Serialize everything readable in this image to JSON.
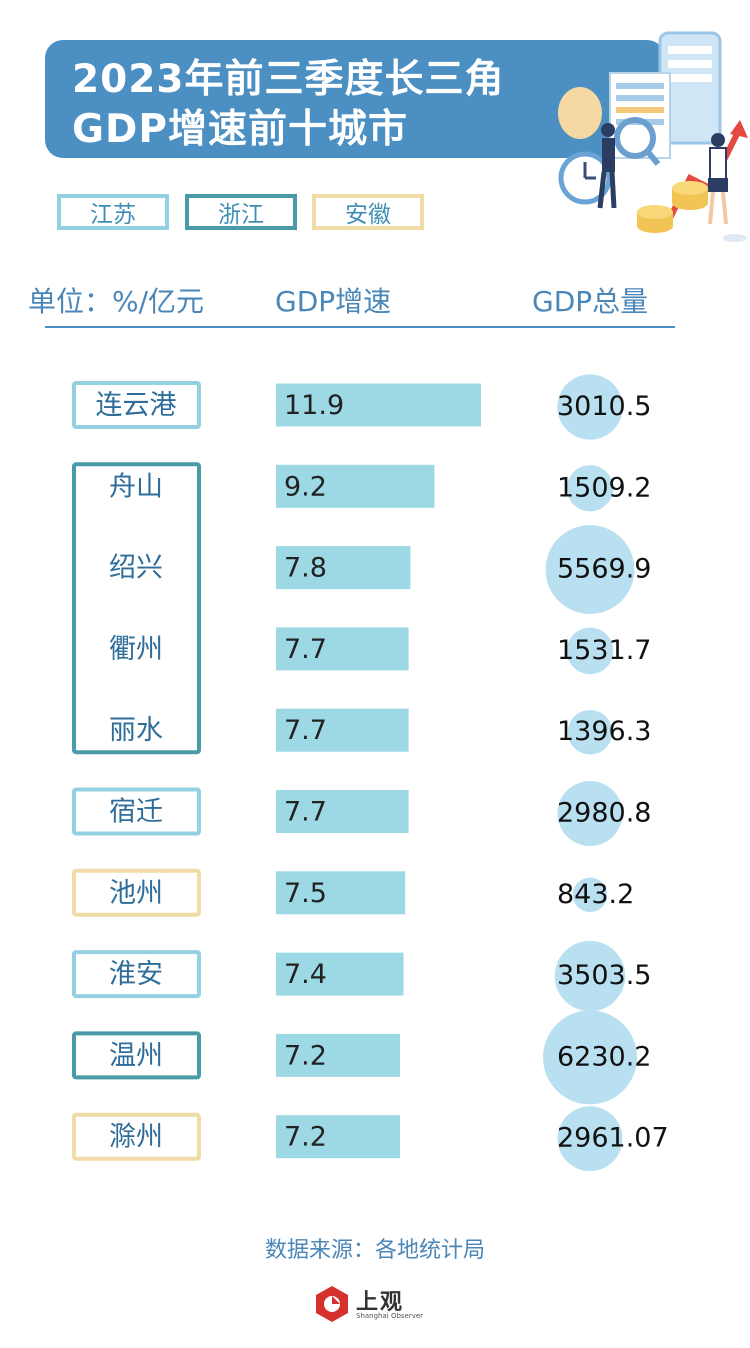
{
  "title": {
    "line1": "2023年前三季度长三角",
    "line2": "GDP增速前十城市"
  },
  "legend": [
    {
      "label": "江苏",
      "color": "#93d0e2"
    },
    {
      "label": "浙江",
      "color": "#4a9aa8"
    },
    {
      "label": "安徽",
      "color": "#f0dca6"
    }
  ],
  "columns": {
    "unit": "单位：%/亿元",
    "growth": "GDP增速",
    "total": "GDP总量"
  },
  "chart_data": {
    "type": "bar",
    "categories": [
      "连云港",
      "舟山",
      "绍兴",
      "衢州",
      "丽水",
      "宿迁",
      "池州",
      "淮安",
      "温州",
      "滁州"
    ],
    "provinces": [
      "江苏",
      "浙江",
      "浙江",
      "浙江",
      "浙江",
      "江苏",
      "安徽",
      "江苏",
      "浙江",
      "安徽"
    ],
    "series": [
      {
        "name": "GDP增速",
        "values": [
          11.9,
          9.2,
          7.8,
          7.7,
          7.7,
          7.7,
          7.5,
          7.4,
          7.2,
          7.2
        ]
      },
      {
        "name": "GDP总量",
        "values": [
          3010.5,
          1509.2,
          5569.9,
          1531.7,
          1396.3,
          2980.8,
          843.2,
          3503.5,
          6230.2,
          2961.07
        ]
      }
    ],
    "labels_total": [
      "3010.5",
      "1509.2",
      "5569.9",
      "1531.7",
      "1396.3",
      "2980.8",
      "843.2",
      "3503.5",
      "6230.2",
      "2961.07"
    ],
    "bar_color": "#9dd8e5",
    "bubble_color": "#b8e0f0"
  },
  "source": "数据来源：各地统计局",
  "logo": {
    "name": "上观",
    "subtitle": "Shanghai Observer"
  }
}
